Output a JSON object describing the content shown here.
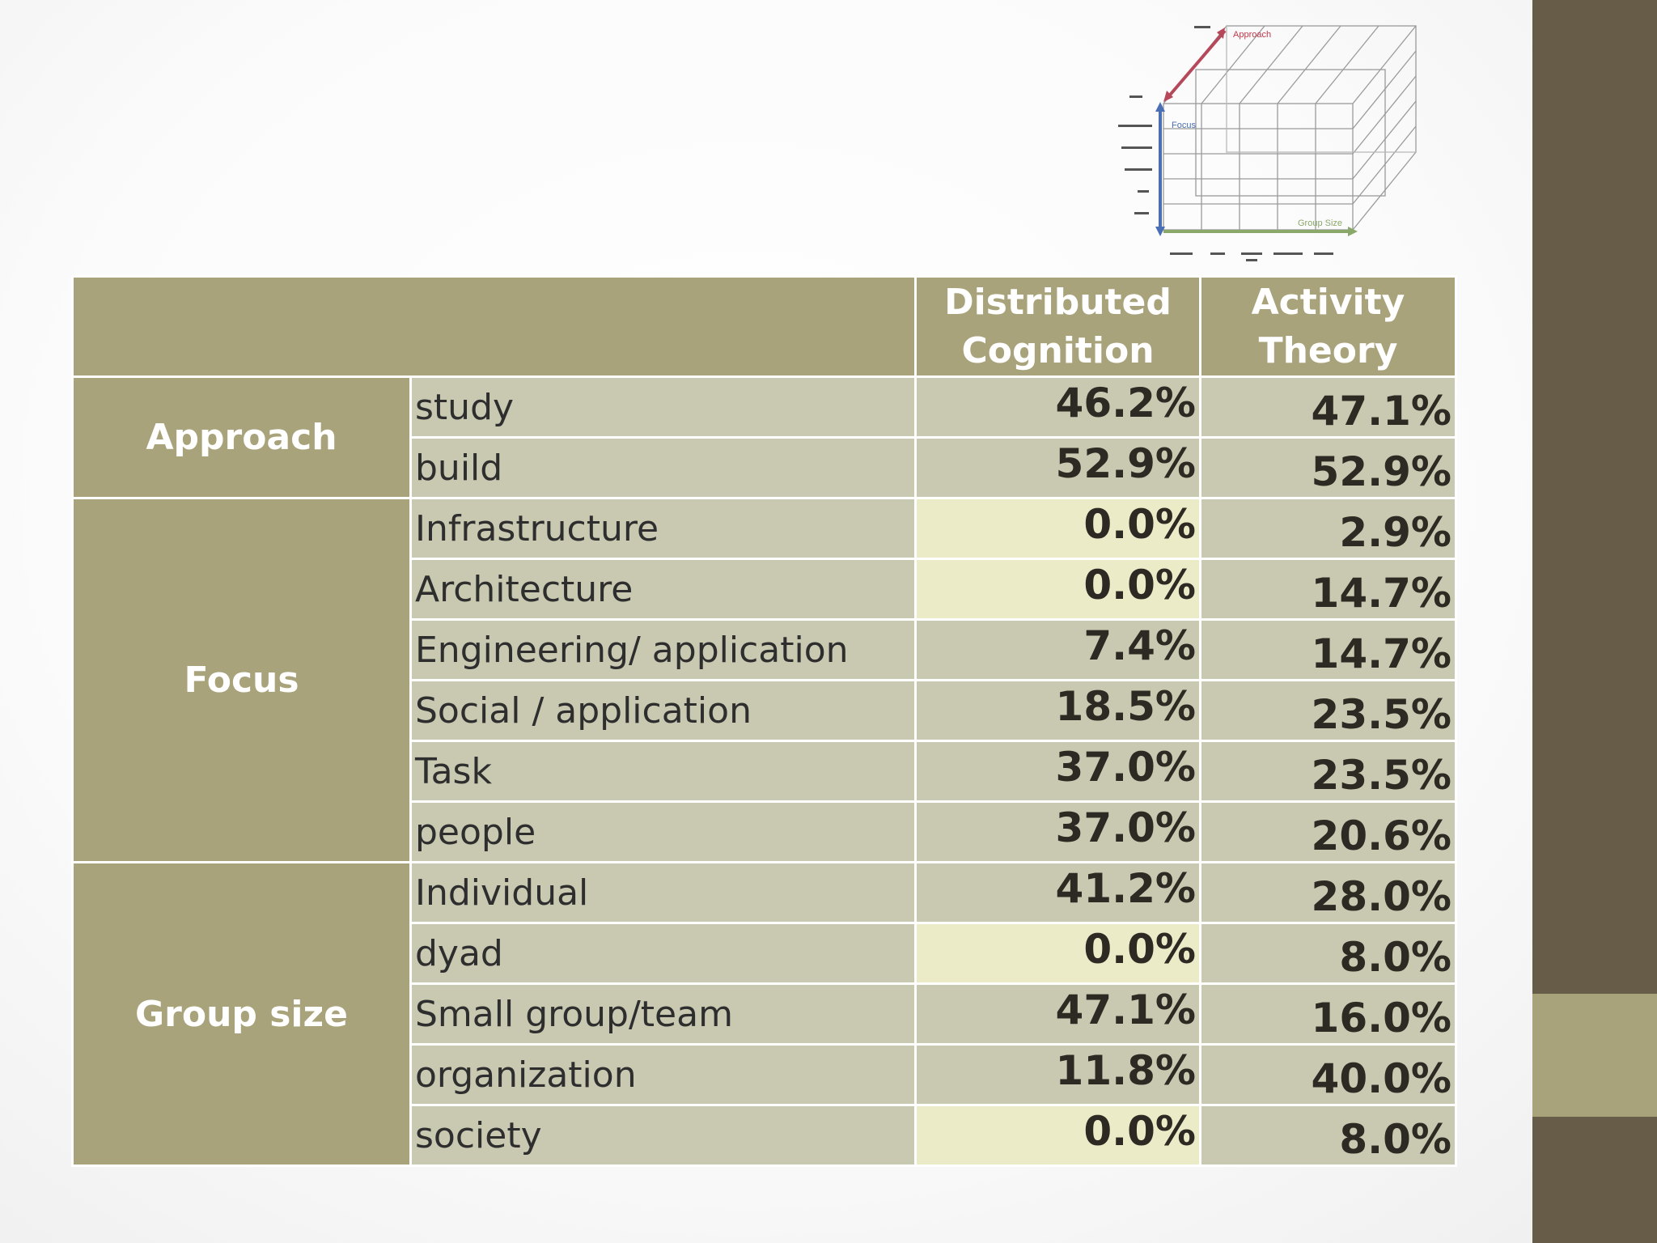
{
  "colors": {
    "header_bg": "#a8a37a",
    "cell_bg": "#c9c8b1",
    "zero_cell_bg": "#ecebc8",
    "band_dark": "#675c47",
    "band_light": "#a8a37a"
  },
  "diagram": {
    "axis_approach": "Approach",
    "axis_focus": "Focus",
    "axis_group_size": "Group Size"
  },
  "table": {
    "columns": [
      "Distributed Cognition",
      "Activity Theory"
    ],
    "col_dc_line1": "Distributed",
    "col_dc_line2": "Cognition",
    "col_at_line1": "Activity",
    "col_at_line2": "Theory",
    "groups": [
      {
        "name": "Approach",
        "rows": [
          {
            "label": "study",
            "dc": "46.2%",
            "at": "47.1%"
          },
          {
            "label": "build",
            "dc": "52.9%",
            "at": "52.9%"
          }
        ]
      },
      {
        "name": "Focus",
        "rows": [
          {
            "label": "Infrastructure",
            "dc": "0.0%",
            "at": "2.9%"
          },
          {
            "label": "Architecture",
            "dc": "0.0%",
            "at": "14.7%"
          },
          {
            "label": "Engineering/ application",
            "dc": "7.4%",
            "at": "14.7%"
          },
          {
            "label": "Social / application",
            "dc": "18.5%",
            "at": "23.5%"
          },
          {
            "label": "Task",
            "dc": "37.0%",
            "at": "23.5%"
          },
          {
            "label": "people",
            "dc": "37.0%",
            "at": "20.6%"
          }
        ]
      },
      {
        "name": "Group size",
        "rows": [
          {
            "label": "Individual",
            "dc": "41.2%",
            "at": "28.0%"
          },
          {
            "label": "dyad",
            "dc": "0.0%",
            "at": "8.0%"
          },
          {
            "label": "Small group/team",
            "dc": "47.1%",
            "at": "16.0%"
          },
          {
            "label": "organization",
            "dc": "11.8%",
            "at": "40.0%"
          },
          {
            "label": "society",
            "dc": "0.0%",
            "at": "8.0%"
          }
        ]
      }
    ]
  }
}
